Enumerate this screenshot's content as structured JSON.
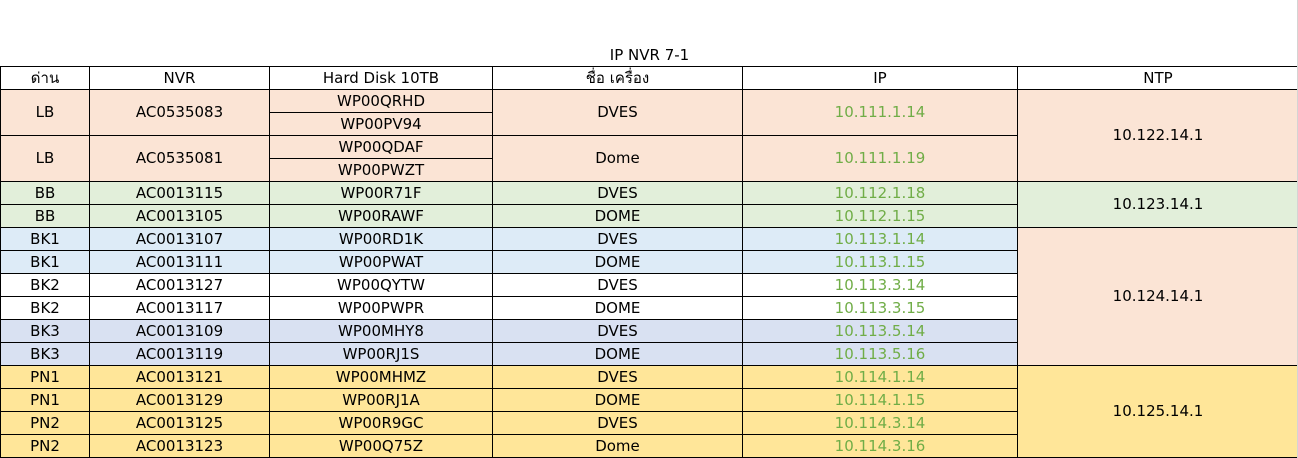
{
  "title": "IP NVR 7-1",
  "headers": [
    "ด่าน",
    "NVR",
    "Hard Disk 10TB",
    "ชื่อ เครื่อง",
    "IP",
    "NTP"
  ],
  "ntp": [
    "10.122.14.1",
    "10.123.14.1",
    "10.124.14.1",
    "10.125.14.1"
  ],
  "groups": [
    {
      "gate": "LB",
      "nvr": "AC0535083",
      "disks": [
        "WP00QRHD",
        "WP00PV94"
      ],
      "name": "DVES",
      "ip": "10.111.1.14"
    },
    {
      "gate": "LB",
      "nvr": "AC0535081",
      "disks": [
        "WP00QDAF",
        "WP00PWZT"
      ],
      "name": "Dome",
      "ip": "10.111.1.19"
    }
  ],
  "rows": [
    {
      "gate": "BB",
      "nvr": "AC0013115",
      "disk": "WP00R71F",
      "name": "DVES",
      "ip": "10.112.1.18"
    },
    {
      "gate": "BB",
      "nvr": "AC0013105",
      "disk": "WP00RAWF",
      "name": "DOME",
      "ip": "10.112.1.15"
    },
    {
      "gate": "BK1",
      "nvr": "AC0013107",
      "disk": "WP00RD1K",
      "name": "DVES",
      "ip": "10.113.1.14"
    },
    {
      "gate": "BK1",
      "nvr": "AC0013111",
      "disk": "WP00PWAT",
      "name": "DOME",
      "ip": "10.113.1.15"
    },
    {
      "gate": "BK2",
      "nvr": "AC0013127",
      "disk": "WP00QYTW",
      "name": "DVES",
      "ip": "10.113.3.14"
    },
    {
      "gate": "BK2",
      "nvr": "AC0013117",
      "disk": "WP00PWPR",
      "name": "DOME",
      "ip": "10.113.3.15"
    },
    {
      "gate": "BK3",
      "nvr": "AC0013109",
      "disk": "WP00MHY8",
      "name": "DVES",
      "ip": "10.113.5.14"
    },
    {
      "gate": "BK3",
      "nvr": "AC0013119",
      "disk": "WP00RJ1S",
      "name": "DOME",
      "ip": "10.113.5.16"
    },
    {
      "gate": "PN1",
      "nvr": "AC0013121",
      "disk": "WP00MHMZ",
      "name": "DVES",
      "ip": "10.114.1.14"
    },
    {
      "gate": "PN1",
      "nvr": "AC0013129",
      "disk": "WP00RJ1A",
      "name": "DOME",
      "ip": "10.114.1.15"
    },
    {
      "gate": "PN2",
      "nvr": "AC0013125",
      "disk": "WP00R9GC",
      "name": "DVES",
      "ip": "10.114.3.14"
    },
    {
      "gate": "PN2",
      "nvr": "AC0013123",
      "disk": "WP00Q75Z",
      "name": "Dome",
      "ip": "10.114.3.16"
    }
  ],
  "colors": {
    "ip_text": "#70ad47",
    "lb_fill": "#fbe4d5",
    "bb_fill": "#e2efda",
    "bk1_fill": "#ddebf7",
    "bk2_fill": "#ffffff",
    "bk3_fill": "#d9e1f2",
    "pn_fill": "#ffe699"
  }
}
